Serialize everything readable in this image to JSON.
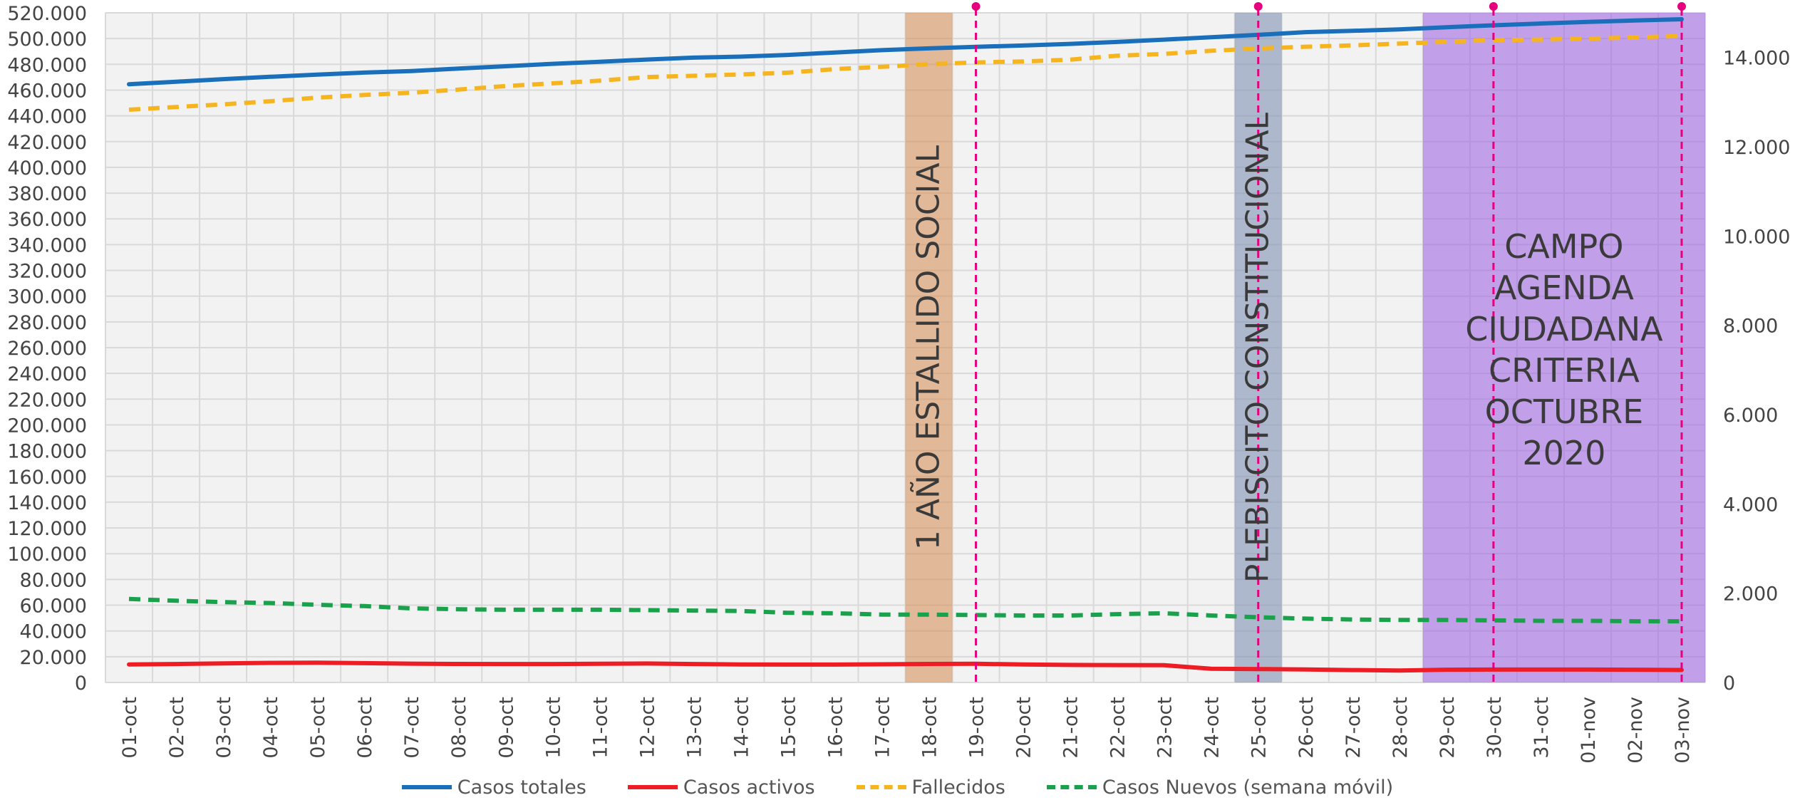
{
  "chart_data": {
    "type": "line",
    "title": "",
    "categories": [
      "01-oct",
      "02-oct",
      "03-oct",
      "04-oct",
      "05-oct",
      "06-oct",
      "07-oct",
      "08-oct",
      "09-oct",
      "10-oct",
      "11-oct",
      "12-oct",
      "13-oct",
      "14-oct",
      "15-oct",
      "16-oct",
      "17-oct",
      "18-oct",
      "19-oct",
      "20-oct",
      "21-oct",
      "22-oct",
      "23-oct",
      "24-oct",
      "25-oct",
      "26-oct",
      "27-oct",
      "28-oct",
      "29-oct",
      "30-oct",
      "31-oct",
      "01-nov",
      "02-nov",
      "03-nov"
    ],
    "y_left": {
      "ylim": [
        0,
        520000
      ],
      "ticks": [
        0,
        20000,
        40000,
        60000,
        80000,
        100000,
        120000,
        140000,
        160000,
        180000,
        200000,
        220000,
        240000,
        260000,
        280000,
        300000,
        320000,
        340000,
        360000,
        380000,
        400000,
        420000,
        440000,
        460000,
        480000,
        500000,
        520000
      ],
      "tick_labels": [
        "0",
        "20.000",
        "40.000",
        "60.000",
        "80.000",
        "100.000",
        "120.000",
        "140.000",
        "160.000",
        "180.000",
        "200.000",
        "220.000",
        "240.000",
        "260.000",
        "280.000",
        "300.000",
        "320.000",
        "340.000",
        "360.000",
        "380.000",
        "400.000",
        "420.000",
        "440.000",
        "460.000",
        "480.000",
        "500.000",
        "520.000"
      ]
    },
    "y_right": {
      "ylim": [
        0,
        15000
      ],
      "ticks": [
        0,
        2000,
        4000,
        6000,
        8000,
        10000,
        12000,
        14000
      ],
      "tick_labels": [
        "0",
        "2.000",
        "4.000",
        "6.000",
        "8.000",
        "10.000",
        "12.000",
        "14.000"
      ]
    },
    "grid": true,
    "legend_position": "bottom",
    "series": [
      {
        "name": "Casos totales",
        "axis": "left",
        "color": "#1a6fba",
        "dashed": false,
        "values": [
          464500,
          466500,
          468500,
          470300,
          472000,
          473600,
          474800,
          476700,
          478500,
          480400,
          482000,
          483700,
          485200,
          486000,
          487300,
          489200,
          491000,
          492400,
          493600,
          494600,
          495900,
          497400,
          499200,
          501000,
          502900,
          505000,
          506000,
          507100,
          508800,
          510300,
          511700,
          513000,
          514000,
          515000
        ]
      },
      {
        "name": "Casos activos",
        "axis": "left",
        "color": "#ee1c25",
        "dashed": false,
        "values": [
          14000,
          14300,
          14800,
          15200,
          15300,
          15000,
          14600,
          14400,
          14300,
          14300,
          14500,
          14700,
          14300,
          14000,
          13900,
          13900,
          14100,
          14400,
          14500,
          14000,
          13600,
          13500,
          13400,
          10600,
          10400,
          10100,
          9600,
          9300,
          9900,
          10000,
          10000,
          10000,
          9900,
          9700
        ]
      },
      {
        "name": "Fallecidos",
        "axis": "right",
        "color": "#f6b51f",
        "dashed": true,
        "values": [
          12830,
          12890,
          12950,
          13020,
          13100,
          13160,
          13210,
          13280,
          13360,
          13420,
          13480,
          13560,
          13590,
          13620,
          13660,
          13740,
          13790,
          13850,
          13890,
          13910,
          13950,
          14040,
          14080,
          14150,
          14200,
          14240,
          14270,
          14310,
          14350,
          14390,
          14400,
          14420,
          14450,
          14480
        ]
      },
      {
        "name": "Casos Nuevos (semana móvil)",
        "axis": "right",
        "color": "#1aa14b",
        "dashed": true,
        "values": [
          1870,
          1830,
          1800,
          1780,
          1740,
          1710,
          1660,
          1640,
          1630,
          1630,
          1630,
          1620,
          1610,
          1600,
          1560,
          1550,
          1520,
          1520,
          1510,
          1500,
          1500,
          1530,
          1550,
          1500,
          1460,
          1430,
          1410,
          1400,
          1400,
          1390,
          1380,
          1380,
          1370,
          1370
        ]
      }
    ],
    "bands": [
      {
        "label": "1 AÑO ESTALLIDO SOCIAL",
        "from": "18-oct",
        "to": "18-oct",
        "color": "#d38a50",
        "opacity": 0.55,
        "vertical": true
      },
      {
        "label": "PLEBISCITO CONSTITUCIONAL",
        "from": "25-oct",
        "to": "25-oct",
        "color": "#8898b7",
        "opacity": 0.65,
        "vertical": true
      },
      {
        "label": "CAMPO AGENDA CIUDADANA CRITERIA OCTUBRE 2020",
        "from": "29-oct",
        "to": "03-nov",
        "color": "#9a5ce2",
        "opacity": 0.55,
        "vertical": false
      }
    ],
    "markers": [
      "19-oct",
      "25-oct",
      "30-oct",
      "03-nov"
    ],
    "marker_color": "#e6007e"
  }
}
